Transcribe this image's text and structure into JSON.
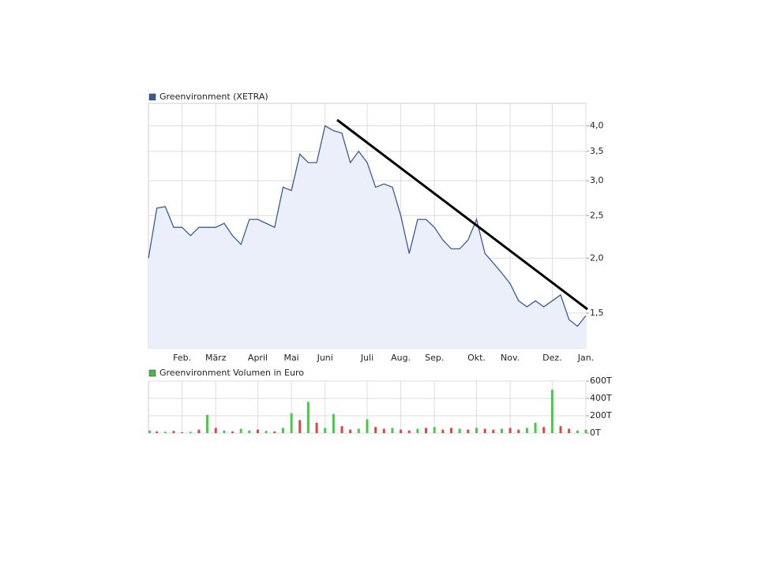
{
  "chart_data": [
    {
      "type": "line",
      "categories": [
        null,
        null,
        null,
        null,
        "Feb.",
        null,
        null,
        null,
        "März",
        null,
        null,
        null,
        null,
        "April",
        null,
        null,
        null,
        "Mai",
        null,
        null,
        null,
        "Juni",
        null,
        null,
        null,
        null,
        "Juli",
        null,
        null,
        null,
        "Aug.",
        null,
        null,
        null,
        "Sep.",
        null,
        null,
        null,
        null,
        "Okt.",
        null,
        null,
        null,
        "Nov.",
        null,
        null,
        null,
        null,
        "Dez.",
        null,
        null,
        null,
        "Jan."
      ],
      "series": [
        {
          "name": "Greenvironment (XETRA)",
          "color": "#3b5b92",
          "values": [
            2.0,
            2.6,
            2.62,
            2.35,
            2.35,
            2.25,
            2.35,
            2.35,
            2.35,
            2.4,
            2.25,
            2.15,
            2.45,
            2.45,
            2.4,
            2.35,
            2.9,
            2.85,
            3.45,
            3.3,
            3.3,
            4.0,
            3.9,
            3.85,
            3.3,
            3.5,
            3.3,
            2.9,
            2.95,
            2.9,
            2.5,
            2.05,
            2.45,
            2.45,
            2.35,
            2.2,
            2.1,
            2.1,
            2.2,
            2.45,
            2.05,
            1.95,
            1.85,
            1.75,
            1.6,
            1.55,
            1.6,
            1.55,
            1.6,
            1.65,
            1.45,
            1.4,
            1.48
          ]
        }
      ],
      "area_color": "#eaeff9",
      "log_scale": true,
      "ylim": [
        1.25,
        4.5
      ],
      "yticks": [
        {
          "value": 1.5,
          "label": "1,5"
        },
        {
          "value": 2.0,
          "label": "2,0"
        },
        {
          "value": 2.5,
          "label": "2,5"
        },
        {
          "value": 3.0,
          "label": "3,0"
        },
        {
          "value": 3.5,
          "label": "3,5"
        },
        {
          "value": 4.0,
          "label": "4,0"
        }
      ],
      "grid": true
    },
    {
      "type": "bar",
      "series": [
        {
          "name": "Greenvironment Volumen in Euro",
          "color": "#44bb44",
          "values": [
            30000,
            20000,
            15000,
            25000,
            10000,
            15000,
            40000,
            210000,
            60000,
            30000,
            20000,
            50000,
            30000,
            40000,
            25000,
            20000,
            60000,
            230000,
            150000,
            360000,
            120000,
            60000,
            220000,
            80000,
            40000,
            50000,
            160000,
            70000,
            50000,
            60000,
            40000,
            30000,
            50000,
            60000,
            70000,
            40000,
            60000,
            50000,
            40000,
            60000,
            50000,
            40000,
            50000,
            60000,
            40000,
            60000,
            120000,
            70000,
            500000,
            80000,
            50000,
            30000,
            40000
          ],
          "colors": [
            "#4c4",
            "#d44",
            "#4c4",
            "#d44",
            "#d44",
            "#4c4",
            "#d44",
            "#4c4",
            "#d44",
            "#4c4",
            "#d44",
            "#4c4",
            "#4c4",
            "#d44",
            "#4c4",
            "#d44",
            "#4c4",
            "#4c4",
            "#d44",
            "#4c4",
            "#d44",
            "#4c4",
            "#4c4",
            "#d44",
            "#d44",
            "#4c4",
            "#4c4",
            "#d44",
            "#d44",
            "#4c4",
            "#d44",
            "#d44",
            "#4c4",
            "#d44",
            "#4c4",
            "#d44",
            "#d44",
            "#4c4",
            "#d44",
            "#4c4",
            "#d44",
            "#d44",
            "#4c4",
            "#d44",
            "#d44",
            "#4c4",
            "#4c4",
            "#d44",
            "#4c4",
            "#d44",
            "#d44",
            "#4c4",
            "#4c4"
          ]
        }
      ],
      "ylim": [
        0,
        600000
      ],
      "yticks": [
        {
          "value": 0,
          "label": "0T"
        },
        {
          "value": 200000,
          "label": "200T"
        },
        {
          "value": 400000,
          "label": "400T"
        },
        {
          "value": 600000,
          "label": "600T"
        }
      ],
      "grid": true
    }
  ]
}
